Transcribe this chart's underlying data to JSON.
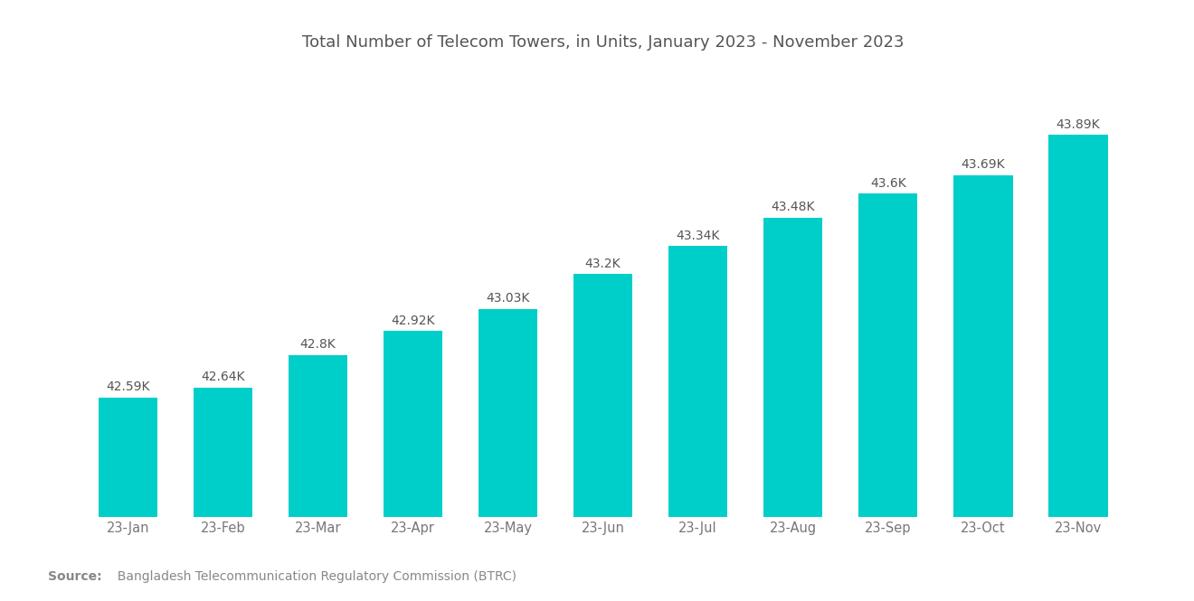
{
  "title": "Total Number of Telecom Towers, in Units, January 2023 - November 2023",
  "categories": [
    "23-Jan",
    "23-Feb",
    "23-Mar",
    "23-Apr",
    "23-May",
    "23-Jun",
    "23-Jul",
    "23-Aug",
    "23-Sep",
    "23-Oct",
    "23-Nov"
  ],
  "values": [
    42590,
    42640,
    42800,
    42920,
    43030,
    43200,
    43340,
    43480,
    43600,
    43690,
    43890
  ],
  "labels": [
    "42.59K",
    "42.64K",
    "42.8K",
    "42.92K",
    "43.03K",
    "43.2K",
    "43.34K",
    "43.48K",
    "43.6K",
    "43.69K",
    "43.89K"
  ],
  "bar_color": "#00CEC9",
  "background_color": "#ffffff",
  "title_color": "#555555",
  "label_color": "#555555",
  "tick_color": "#777777",
  "source_bold": "Source:",
  "source_text": "  Bangladesh Telecommunication Regulatory Commission (BTRC)",
  "bar_bottom": 42000,
  "ylim_min": 42000,
  "ylim_max": 44200,
  "title_fontsize": 13,
  "label_fontsize": 10,
  "tick_fontsize": 10.5,
  "source_fontsize": 10
}
